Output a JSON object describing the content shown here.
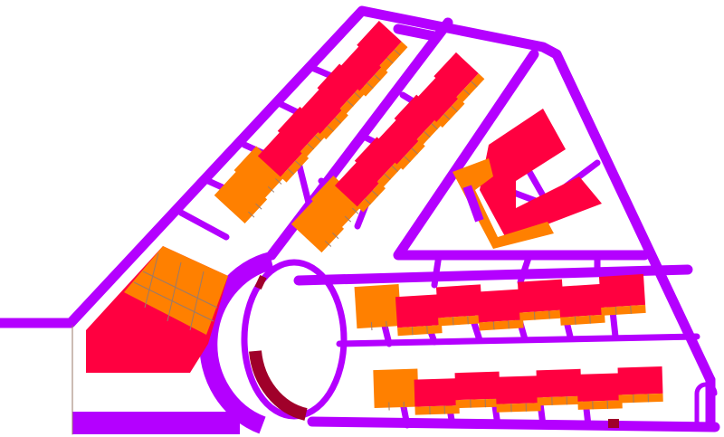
{
  "plan": {
    "colors": {
      "road": "#b400ff",
      "building": "#ff0040",
      "building_secondary": "#ff8000",
      "plaza_accent": "#a0002a",
      "grid_line": "#9a7a6a",
      "background": "#ffffff"
    }
  }
}
